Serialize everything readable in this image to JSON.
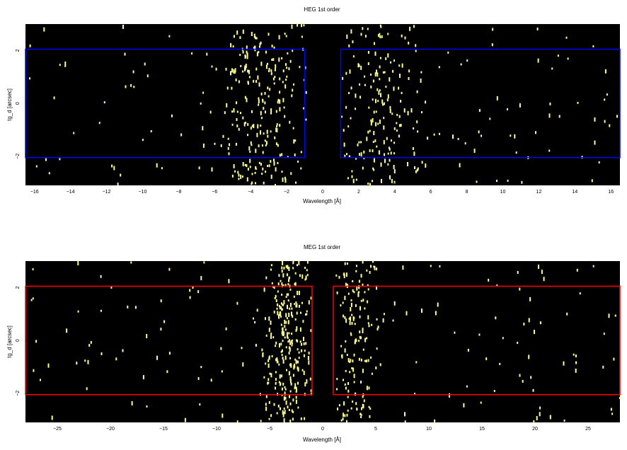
{
  "chart_data": [
    {
      "type": "scatter",
      "title": "HEG 1st order",
      "xlabel": "Wavelength [Å]",
      "ylabel": "tg_d [arcsec]",
      "xlim": [
        -16.5,
        16.5
      ],
      "ylim": [
        -3.1,
        3.0
      ],
      "xticks": [
        -16,
        -14,
        -12,
        -10,
        -8,
        -6,
        -4,
        -2,
        0,
        2,
        4,
        6,
        8,
        10,
        12,
        14,
        16
      ],
      "xtick_labels": [
        "−16",
        "−14",
        "−12",
        "−10",
        "−8",
        "−6",
        "−4",
        "−2",
        "0",
        "2",
        "4",
        "6",
        "8",
        "10",
        "12",
        "14",
        "16"
      ],
      "yticks": [
        -2,
        0,
        2
      ],
      "ytick_labels": [
        "−2",
        "0",
        "2"
      ],
      "background": "#000000",
      "event_color": "#ffff80",
      "regions": [
        {
          "x": [
            -16.5,
            -1.0
          ],
          "y": [
            -2.05,
            2.05
          ],
          "color": "#0000ff"
        },
        {
          "x": [
            1.0,
            16.5
          ],
          "y": [
            -2.05,
            2.05
          ],
          "color": "#0000ff"
        }
      ],
      "density": {
        "seed": 7,
        "n_events": 520,
        "peaks": [
          {
            "center": -3.4,
            "sigma": 1.3,
            "weight": 0.42
          },
          {
            "center": 3.2,
            "sigma": 1.1,
            "weight": 0.3
          }
        ],
        "uniform_weight": 0.28,
        "gap": [
          -0.9,
          0.9
        ]
      }
    },
    {
      "type": "scatter",
      "title": "MEG 1st order",
      "xlabel": "Wavelength [Å]",
      "ylabel": "tg_d [arcsec]",
      "xlim": [
        -28,
        28
      ],
      "ylim": [
        -3.1,
        3.0
      ],
      "xticks": [
        -25,
        -20,
        -15,
        -10,
        -5,
        0,
        5,
        10,
        15,
        20,
        25
      ],
      "xtick_labels": [
        "−25",
        "−20",
        "−15",
        "−10",
        "−5",
        "0",
        "5",
        "10",
        "15",
        "20",
        "25"
      ],
      "yticks": [
        -2,
        0,
        2
      ],
      "ytick_labels": [
        "−2",
        "0",
        "2"
      ],
      "background": "#000000",
      "event_color": "#ffff80",
      "regions": [
        {
          "x": [
            -28,
            -1.0
          ],
          "y": [
            -2.05,
            2.05
          ],
          "color": "#ff0000"
        },
        {
          "x": [
            1.0,
            28
          ],
          "y": [
            -2.05,
            2.05
          ],
          "color": "#ff0000"
        }
      ],
      "density": {
        "seed": 19,
        "n_events": 560,
        "peaks": [
          {
            "center": -3.4,
            "sigma": 1.2,
            "weight": 0.45
          },
          {
            "center": 3.0,
            "sigma": 1.2,
            "weight": 0.3
          }
        ],
        "uniform_weight": 0.25,
        "gap": [
          -1.1,
          1.1
        ]
      }
    }
  ]
}
